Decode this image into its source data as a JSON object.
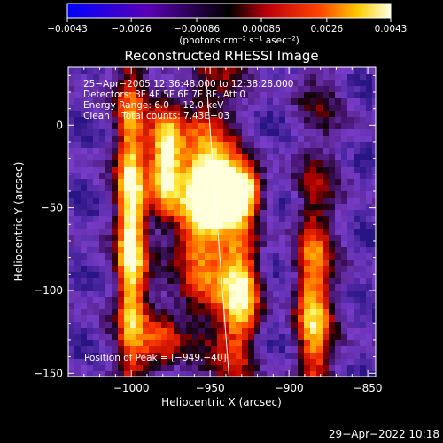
{
  "chart_data": {
    "type": "heatmap",
    "title": "Reconstructed RHESSI Image",
    "xlabel": "Heliocentric X (arcsec)",
    "ylabel": "Heliocentric Y (arcsec)",
    "xlim": [
      -1040,
      -845
    ],
    "ylim": [
      -152,
      35
    ],
    "xticks": [
      -1000,
      -950,
      -900,
      -850
    ],
    "xtick_labels": [
      "−1000",
      "−950",
      "−900",
      "−850"
    ],
    "yticks": [
      0,
      -50,
      -100,
      -150
    ],
    "ytick_labels": [
      "0",
      "−50",
      "−100",
      "−150"
    ],
    "colorbar": {
      "min": -0.0043,
      "max": 0.0043,
      "ticks": [
        -0.0043,
        -0.0026,
        -0.00086,
        0.00086,
        0.0026,
        0.0043
      ],
      "tick_labels": [
        "−0.0043",
        "−0.0026",
        "−0.00086",
        "0.00086",
        "0.0026",
        "0.0043"
      ],
      "unit_label": "(photons cm⁻² s⁻¹ asec⁻²)"
    },
    "peak": {
      "x": -949,
      "y": -40
    },
    "info_lines": [
      "25−Apr−2005 12:36:48.000 to 12:38:28.000",
      "Detectors: 3F 4F 5F 6F 7F 8F, Att 0",
      "Energy Range: 6.0 − 12.0 keV",
      "Clean    Total counts: 7.43E+03"
    ],
    "peak_label": "Position of Peak = [−949,−40]",
    "limb_line": [
      {
        "x": -953,
        "y": 35
      },
      {
        "x": -938,
        "y": -152
      }
    ],
    "sources": [
      {
        "x": -1000,
        "y": -60,
        "sx": 6,
        "sy": 60,
        "amp": 0.75
      },
      {
        "x": -978,
        "y": -20,
        "sx": 7,
        "sy": 22,
        "amp": 0.85
      },
      {
        "x": -958,
        "y": -50,
        "sx": 12,
        "sy": 45,
        "amp": 0.7
      },
      {
        "x": -945,
        "y": -38,
        "sx": 10,
        "sy": 12,
        "amp": 1.0
      },
      {
        "x": -928,
        "y": -40,
        "sx": 8,
        "sy": 10,
        "amp": 0.8
      },
      {
        "x": -930,
        "y": -100,
        "sx": 9,
        "sy": 28,
        "amp": 0.7
      },
      {
        "x": -885,
        "y": -110,
        "sx": 7,
        "sy": 40,
        "amp": 0.55
      },
      {
        "x": -980,
        "y": -130,
        "sx": 10,
        "sy": 15,
        "amp": 0.4
      }
    ]
  },
  "timestamp": "29−Apr−2022 10:18"
}
